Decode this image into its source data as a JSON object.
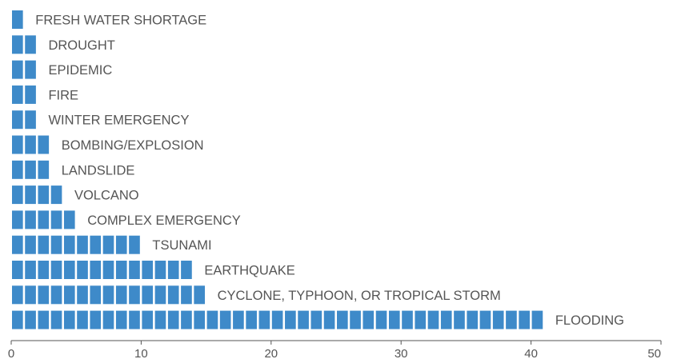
{
  "chart_data": {
    "type": "bar",
    "orientation": "horizontal",
    "style": "unit pictograph (one block per event)",
    "title": "",
    "xlabel": "",
    "ylabel": "",
    "xlim": [
      0,
      50
    ],
    "x_ticks": [
      "0",
      "10",
      "20",
      "30",
      "40",
      "50"
    ],
    "grid": false,
    "legend": "none",
    "bar_color": "#3e8ac9",
    "categories": [
      "FRESH WATER SHORTAGE",
      "DROUGHT",
      "EPIDEMIC",
      "FIRE",
      "WINTER EMERGENCY",
      "BOMBING/EXPLOSION",
      "LANDSLIDE",
      "VOLCANO",
      "COMPLEX EMERGENCY",
      "TSUNAMI",
      "EARTHQUAKE",
      "CYCLONE, TYPHOON, OR TROPICAL STORM",
      "FLOODING"
    ],
    "values": [
      1,
      2,
      2,
      2,
      2,
      3,
      3,
      4,
      5,
      10,
      14,
      15,
      41
    ]
  }
}
